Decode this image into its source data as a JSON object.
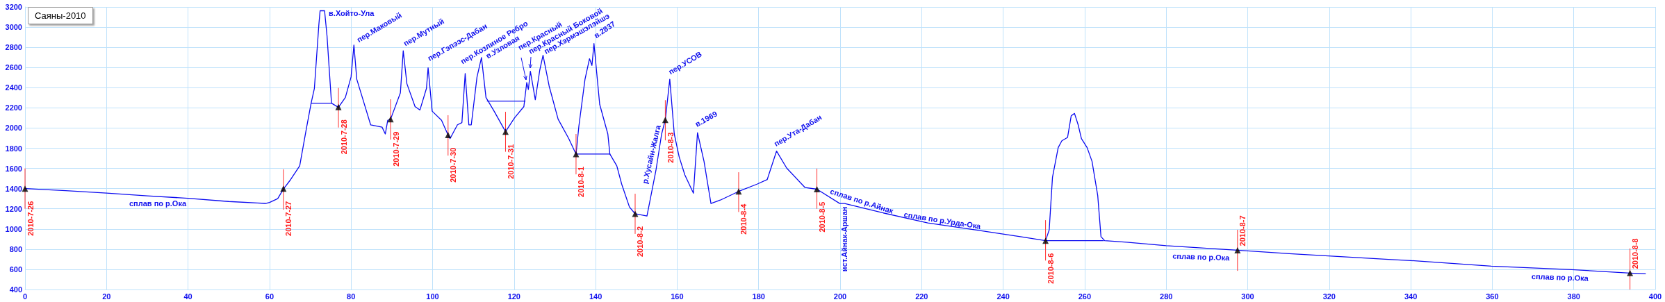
{
  "chart_data": {
    "type": "line",
    "title": "Саяны-2010",
    "xlim": [
      0,
      400
    ],
    "xticks": [
      0,
      20,
      40,
      60,
      80,
      100,
      120,
      140,
      160,
      180,
      200,
      220,
      240,
      260,
      280,
      300,
      320,
      340,
      360,
      380,
      400
    ],
    "ylim": [
      400,
      3200
    ],
    "yticks": [
      400,
      600,
      800,
      1000,
      1200,
      1400,
      1600,
      1800,
      2000,
      2200,
      2400,
      2600,
      2800,
      3000,
      3200
    ],
    "grid": true,
    "series": [
      {
        "color": "#0a0af0",
        "x": [
          0,
          10,
          20,
          30,
          40,
          50,
          57,
          59,
          60,
          62,
          63.4,
          65,
          67.4,
          69,
          70.2,
          71,
          72.1,
          72.4,
          73.5,
          74.1,
          75.2,
          76.9,
          78.6,
          80,
          80.7,
          81.4,
          83.1,
          84.8,
          87.6,
          88.4,
          89,
          89.7,
          92.1,
          92.8,
          93.7,
          95.7,
          96.9,
          98.5,
          98.9,
          99.9,
          102.2,
          103.8,
          104.3,
          106.1,
          107.2,
          108,
          108.9,
          109.5,
          110.9,
          112,
          113.1,
          115.1,
          117.9,
          120.1,
          122.4,
          123.1,
          123.5,
          124,
          125.2,
          126.3,
          127.1,
          128.6,
          130.8,
          133.4,
          135.2,
          135.9,
          137.4,
          138.5,
          139.1,
          139.6,
          141,
          143,
          143.5,
          145.2,
          146.4,
          148.3,
          149.7,
          152.6,
          154.8,
          156.2,
          157.1,
          158.2,
          159.3,
          160.5,
          161.9,
          164,
          165,
          166.6,
          168.3,
          170.6,
          175.1,
          179.6,
          182.1,
          184.4,
          186.9,
          191.4,
          194.3,
          199.9,
          201.1,
          210.2,
          221.5,
          232.9,
          244.2,
          250.4,
          251.3,
          252.1,
          253.5,
          254.4,
          255.8,
          256.7,
          257.5,
          258.4,
          259.2,
          260.6,
          261.8,
          263.2,
          264,
          264.9,
          270.3,
          280,
          297.5,
          310.2,
          334.5,
          340,
          359.8,
          379.5,
          393.8,
          397.6
        ],
        "values": [
          1400,
          1380,
          1355,
          1328,
          1304,
          1272,
          1258,
          1253,
          1262,
          1300,
          1395,
          1480,
          1625,
          1986,
          2246,
          2393,
          3026,
          3162,
          3162,
          2913,
          2246,
          2205,
          2303,
          2506,
          2823,
          2484,
          2258,
          2032,
          2009,
          1941,
          2077,
          2088,
          2348,
          2766,
          2439,
          2213,
          2179,
          2393,
          2597,
          2167,
          2077,
          1930,
          1896,
          2032,
          2054,
          2540,
          2032,
          2032,
          2506,
          2698,
          2303,
          2167,
          1964,
          2100,
          2213,
          2450,
          2382,
          2563,
          2280,
          2574,
          2721,
          2416,
          2088,
          1896,
          1742,
          2020,
          2484,
          2687,
          2620,
          2837,
          2235,
          1941,
          1742,
          1625,
          1444,
          1218,
          1150,
          1128,
          1580,
          1941,
          2081,
          2484,
          1941,
          1715,
          1535,
          1354,
          1953,
          1670,
          1252,
          1286,
          1372,
          1444,
          1489,
          1772,
          1602,
          1410,
          1394,
          1252,
          1252,
          1162,
          1060,
          992,
          924,
          884,
          992,
          1512,
          1806,
          1874,
          1907,
          2122,
          2145,
          2032,
          1896,
          1806,
          1670,
          1331,
          924,
          884,
          868,
          834,
          789,
          755,
          698,
          687,
          631,
          597,
          563,
          556
        ]
      },
      {
        "color": "#0a0af0",
        "x": [
          70.2,
          75.2
        ],
        "values": [
          2246,
          2246
        ]
      },
      {
        "color": "#0a0af0",
        "x": [
          113.4,
          122.7
        ],
        "values": [
          2267,
          2267
        ]
      },
      {
        "color": "#0a0af0",
        "x": [
          135.2,
          143.5
        ],
        "values": [
          1742,
          1742
        ]
      },
      {
        "color": "#0a0af0",
        "x": [
          250.4,
          264.6
        ],
        "values": [
          884,
          884
        ]
      },
      {
        "type": "scatter",
        "color": "#000000",
        "marker": "triangle",
        "x": [
          0,
          63.4,
          76.9,
          89.7,
          103.8,
          117.9,
          135.2,
          149.7,
          157.1,
          175.1,
          194.3,
          250.4,
          297.5,
          393.8
        ],
        "values": [
          1400,
          1399,
          2208,
          2088,
          1930,
          1964,
          1742,
          1150,
          2081,
          1372,
          1394,
          884,
          789,
          563
        ],
        "errors": [
          [
            1200,
            1600
          ],
          [
            1191,
            1591
          ],
          [
            2005,
            2398
          ],
          [
            1885,
            2285
          ],
          [
            1727,
            2127
          ],
          [
            1765,
            2161
          ],
          [
            1541,
            1941
          ],
          [
            951,
            1349
          ],
          [
            1878,
            2276
          ],
          [
            1168,
            1562
          ],
          [
            1200,
            1598
          ],
          [
            687,
            1087
          ],
          [
            585,
            992
          ],
          [
            400,
            807
          ]
        ],
        "value_labels": [
          "2010-7-26",
          "2010-7-27",
          "2010-7-28",
          "2010-7-29",
          "2010-7-30",
          "2010-7-31",
          "2010-8-1",
          "2010-8-2",
          "2010-8-3",
          "2010-8-4",
          "2010-8-5",
          "2010-8-6",
          "2010-8-7",
          "2010-8-8"
        ]
      }
    ],
    "annotations": [
      {
        "text": "в.Хойто-Ула",
        "x": 73.5,
        "y": 3162
      },
      {
        "text": "пер.Маковый",
        "x": 80.7,
        "y": 2823
      },
      {
        "text": "пер.Мутный",
        "x": 92.8,
        "y": 2766
      },
      {
        "text": "пер.Гэпээс-Дабан",
        "x": 98.9,
        "y": 2597
      },
      {
        "text": "пер.Козлиное Ребро",
        "x": 108,
        "y": 2540
      },
      {
        "text": "в.Узловая",
        "x": 112,
        "y": 2698
      },
      {
        "text": "пер.Красный",
        "x": 123.1,
        "y": 2450
      },
      {
        "text": "пер.Красный Боковой",
        "x": 124,
        "y": 2563
      },
      {
        "text": "пер.Хэрмэшэлэйшэ",
        "x": 127.1,
        "y": 2721
      },
      {
        "text": "в.2837",
        "x": 139.6,
        "y": 2837
      },
      {
        "text": "пер.УСОВ",
        "x": 158.2,
        "y": 2484
      },
      {
        "text": "р.Хусайн-Жалга",
        "x": 154.8,
        "y": 1580
      },
      {
        "text": "в.1969",
        "x": 165,
        "y": 1953
      },
      {
        "text": "пер.Ута-Дабан",
        "x": 184.4,
        "y": 1772
      },
      {
        "text": "сплав по р.Ока",
        "x": 30,
        "y": 1328
      },
      {
        "text": "сплав по р.Айнак",
        "x": 199.9,
        "y": 1252
      },
      {
        "text": "сплав по р.Урда-Ока",
        "x": 221.5,
        "y": 1060
      },
      {
        "text": "ист.Айнак-Аршан",
        "x": 201.1,
        "y": 1252
      },
      {
        "text": "сплав по р.Ока",
        "x": 280,
        "y": 834
      },
      {
        "text": "сплав по р.Ока",
        "x": 379.5,
        "y": 597
      }
    ]
  }
}
